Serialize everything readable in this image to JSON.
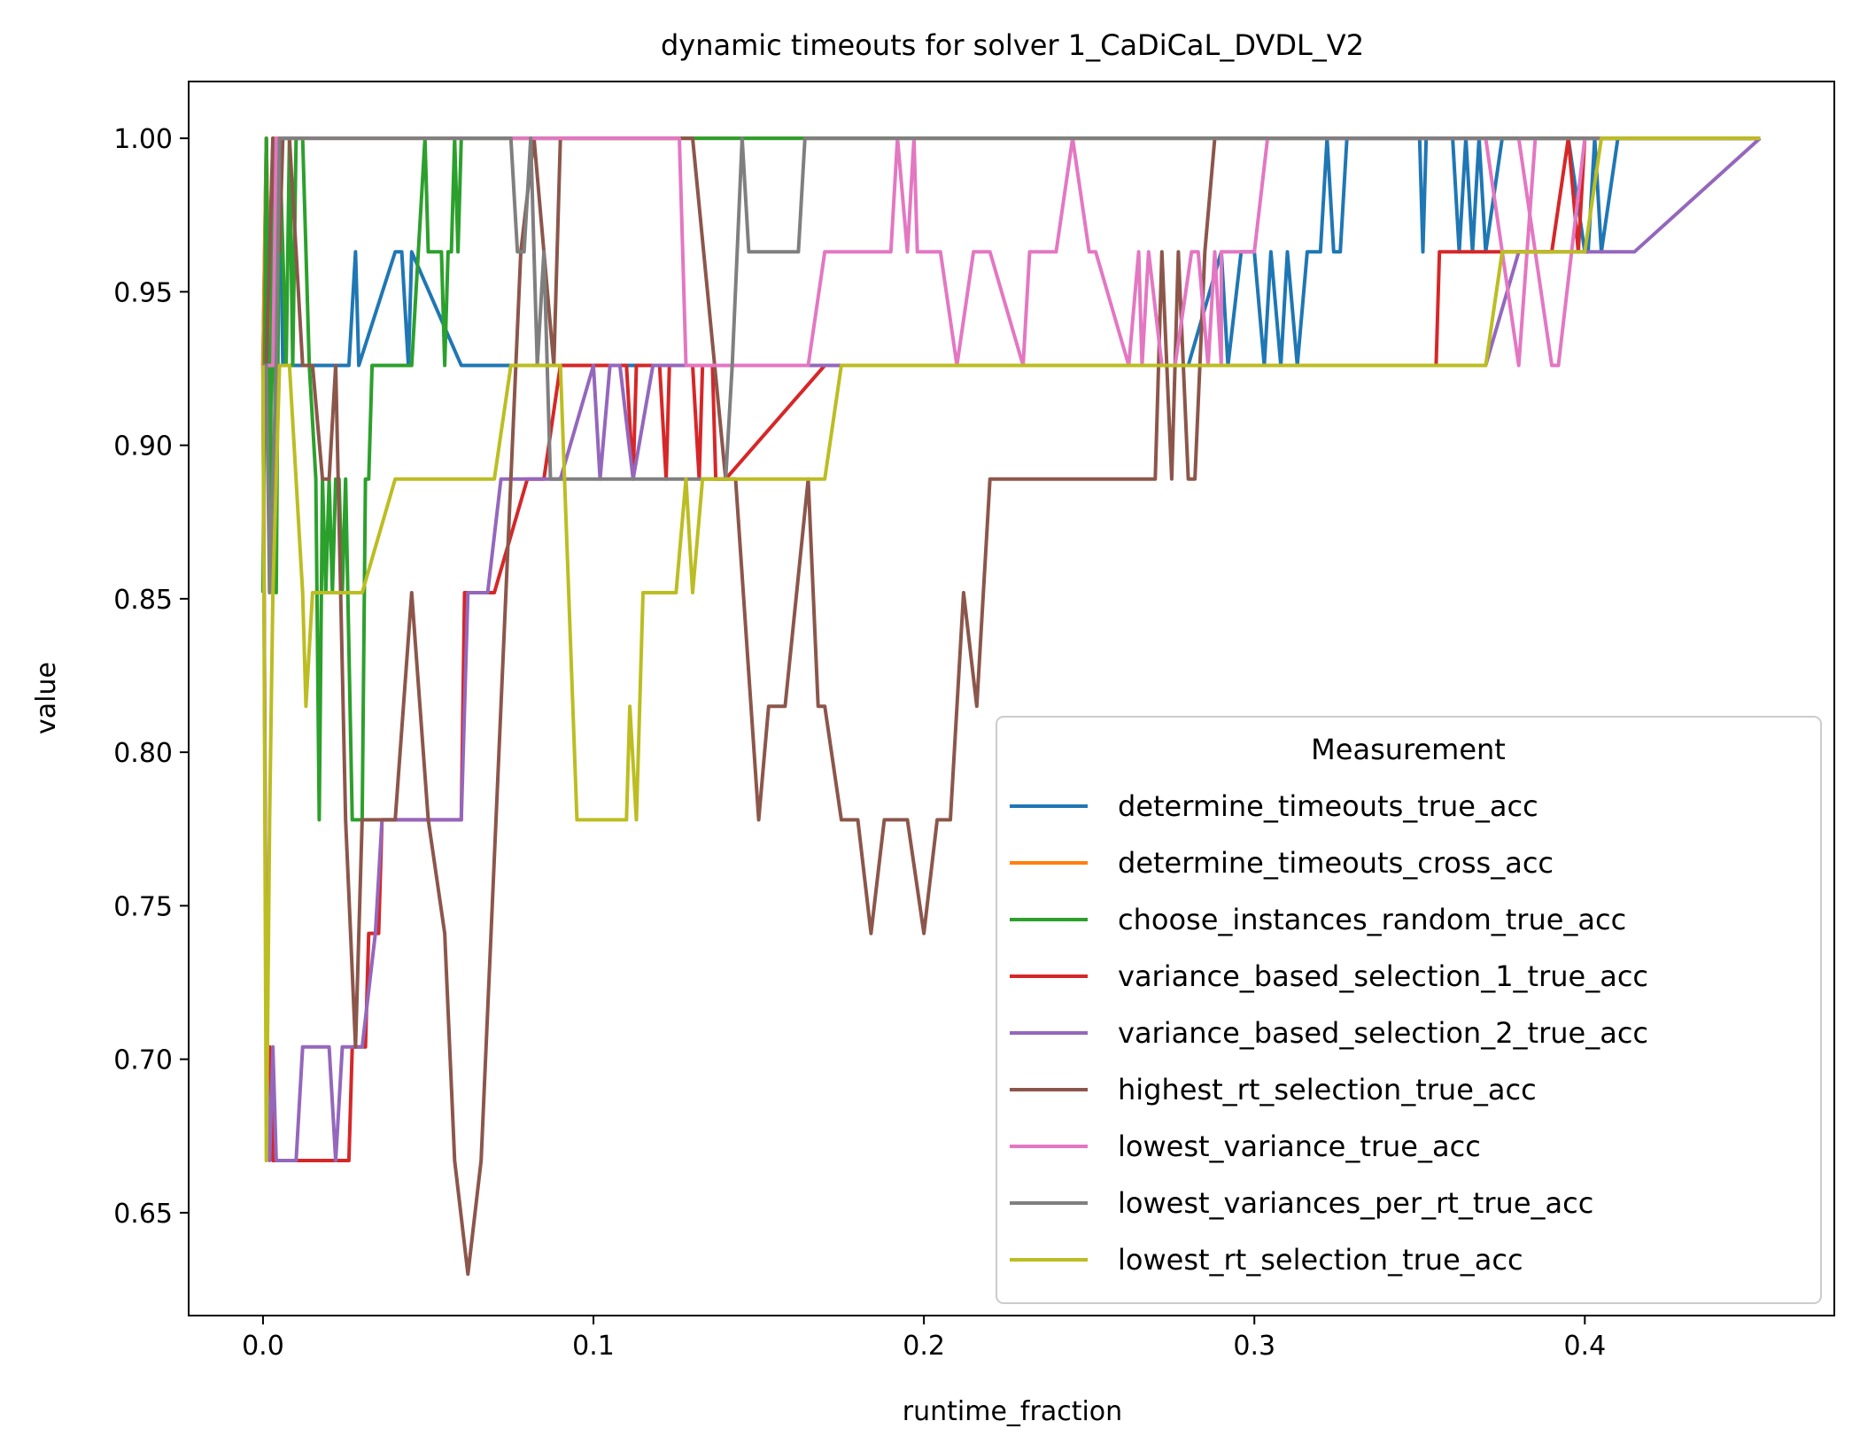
{
  "chart_data": {
    "type": "line",
    "title": "dynamic timeouts for solver 1_CaDiCaL_DVDL_V2",
    "xlabel": "runtime_fraction",
    "ylabel": "value",
    "xlim": [
      -0.0225,
      0.4755
    ],
    "ylim": [
      0.6165,
      1.0185
    ],
    "xticks": [
      "0.0",
      "0.1",
      "0.2",
      "0.3",
      "0.4"
    ],
    "yticks": [
      "0.65",
      "0.70",
      "0.75",
      "0.80",
      "0.85",
      "0.90",
      "0.95",
      "1.00"
    ],
    "grid": false,
    "legend": {
      "title": "Measurement",
      "placement": "lower right"
    },
    "series": [
      {
        "name": "determine_timeouts_true_acc",
        "color": "#1f77b4",
        "x": [
          0.0,
          0.001,
          0.002,
          0.003,
          0.004,
          0.005,
          0.006,
          0.008,
          0.012,
          0.015,
          0.017,
          0.02,
          0.024,
          0.026,
          0.028,
          0.029,
          0.04,
          0.042,
          0.044,
          0.045,
          0.06,
          0.08,
          0.1,
          0.2,
          0.28,
          0.29,
          0.292,
          0.296,
          0.3,
          0.303,
          0.305,
          0.308,
          0.31,
          0.313,
          0.316,
          0.32,
          0.322,
          0.324,
          0.326,
          0.328,
          0.35,
          0.351,
          0.352,
          0.356,
          0.36,
          0.362,
          0.364,
          0.366,
          0.368,
          0.37,
          0.375,
          0.38,
          0.395,
          0.4,
          0.401,
          0.403,
          0.405,
          0.41,
          0.453
        ],
        "y": [
          0.926,
          1.0,
          0.926,
          1.0,
          0.963,
          1.0,
          0.926,
          0.926,
          0.926,
          0.926,
          0.926,
          0.926,
          0.926,
          0.926,
          0.963,
          0.926,
          0.963,
          0.963,
          0.926,
          0.963,
          0.926,
          0.926,
          0.926,
          0.926,
          0.926,
          0.963,
          0.926,
          0.963,
          0.963,
          0.926,
          0.963,
          0.926,
          0.963,
          0.926,
          0.963,
          0.963,
          1.0,
          0.963,
          0.963,
          1.0,
          1.0,
          0.963,
          1.0,
          1.0,
          1.0,
          0.963,
          1.0,
          0.963,
          1.0,
          0.963,
          1.0,
          1.0,
          1.0,
          0.963,
          0.963,
          1.0,
          0.963,
          1.0,
          1.0
        ]
      },
      {
        "name": "determine_timeouts_cross_acc",
        "color": "#ff7f0e",
        "x": [
          0.0,
          0.001,
          0.002,
          0.003,
          0.004,
          0.453
        ],
        "y": [
          0.926,
          1.0,
          0.926,
          1.0,
          1.0,
          1.0
        ]
      },
      {
        "name": "choose_instances_random_true_acc",
        "color": "#2ca02c",
        "x": [
          0.0,
          0.001,
          0.002,
          0.003,
          0.004,
          0.005,
          0.007,
          0.008,
          0.009,
          0.01,
          0.012,
          0.014,
          0.016,
          0.017,
          0.018,
          0.019,
          0.02,
          0.021,
          0.022,
          0.023,
          0.024,
          0.025,
          0.027,
          0.028,
          0.03,
          0.031,
          0.032,
          0.033,
          0.035,
          0.045,
          0.047,
          0.049,
          0.05,
          0.052,
          0.054,
          0.055,
          0.056,
          0.057,
          0.058,
          0.059,
          0.06,
          0.061,
          0.065,
          0.075,
          0.09,
          0.1,
          0.125,
          0.145,
          0.165,
          0.453
        ],
        "y": [
          0.852,
          1.0,
          0.852,
          1.0,
          0.852,
          1.0,
          0.926,
          1.0,
          0.926,
          1.0,
          1.0,
          0.926,
          0.889,
          0.778,
          0.889,
          0.852,
          0.889,
          0.852,
          0.889,
          0.889,
          0.852,
          0.889,
          0.778,
          0.778,
          0.778,
          0.889,
          0.889,
          0.926,
          0.926,
          0.926,
          0.963,
          1.0,
          0.963,
          0.963,
          0.963,
          0.926,
          0.963,
          0.963,
          1.0,
          0.963,
          1.0,
          1.0,
          1.0,
          1.0,
          1.0,
          1.0,
          1.0,
          1.0,
          1.0,
          1.0
        ]
      },
      {
        "name": "variance_based_selection_1_true_acc",
        "color": "#d62728",
        "x": [
          0.0,
          0.001,
          0.002,
          0.003,
          0.004,
          0.005,
          0.01,
          0.015,
          0.016,
          0.018,
          0.02,
          0.022,
          0.023,
          0.025,
          0.026,
          0.027,
          0.028,
          0.03,
          0.031,
          0.032,
          0.033,
          0.035,
          0.036,
          0.038,
          0.04,
          0.06,
          0.061,
          0.062,
          0.065,
          0.067,
          0.07,
          0.08,
          0.085,
          0.09,
          0.1,
          0.11,
          0.112,
          0.113,
          0.115,
          0.12,
          0.122,
          0.123,
          0.125,
          0.13,
          0.132,
          0.133,
          0.135,
          0.136,
          0.137,
          0.14,
          0.17,
          0.2,
          0.3,
          0.35,
          0.355,
          0.356,
          0.358,
          0.37,
          0.39,
          0.395,
          0.398,
          0.4,
          0.402,
          0.453
        ],
        "y": [
          0.926,
          0.704,
          0.704,
          0.667,
          0.667,
          0.667,
          0.667,
          0.667,
          0.667,
          0.667,
          0.667,
          0.667,
          0.667,
          0.667,
          0.667,
          0.704,
          0.704,
          0.704,
          0.704,
          0.741,
          0.741,
          0.741,
          0.778,
          0.778,
          0.778,
          0.778,
          0.852,
          0.852,
          0.852,
          0.852,
          0.852,
          0.889,
          0.889,
          0.926,
          0.926,
          0.926,
          0.889,
          0.926,
          0.926,
          0.926,
          0.889,
          0.926,
          0.926,
          0.926,
          0.889,
          0.926,
          0.926,
          0.926,
          0.889,
          0.889,
          0.926,
          0.926,
          0.926,
          0.926,
          0.926,
          0.963,
          0.963,
          0.963,
          0.963,
          1.0,
          0.963,
          1.0,
          1.0,
          1.0
        ]
      },
      {
        "name": "variance_based_selection_2_true_acc",
        "color": "#9467bd",
        "x": [
          0.0,
          0.001,
          0.002,
          0.003,
          0.004,
          0.005,
          0.01,
          0.012,
          0.014,
          0.02,
          0.022,
          0.024,
          0.026,
          0.03,
          0.034,
          0.036,
          0.04,
          0.06,
          0.062,
          0.064,
          0.068,
          0.072,
          0.078,
          0.085,
          0.09,
          0.1,
          0.102,
          0.105,
          0.108,
          0.112,
          0.118,
          0.125,
          0.17,
          0.3,
          0.37,
          0.38,
          0.395,
          0.41,
          0.415,
          0.453
        ],
        "y": [
          0.926,
          0.704,
          0.667,
          0.704,
          0.667,
          0.667,
          0.667,
          0.704,
          0.704,
          0.704,
          0.667,
          0.704,
          0.704,
          0.704,
          0.741,
          0.778,
          0.778,
          0.778,
          0.852,
          0.852,
          0.852,
          0.889,
          0.889,
          0.889,
          0.889,
          0.926,
          0.889,
          0.926,
          0.926,
          0.889,
          0.926,
          0.926,
          0.926,
          0.926,
          0.926,
          0.963,
          0.963,
          0.963,
          0.963,
          1.0
        ]
      },
      {
        "name": "highest_rt_selection_true_acc",
        "color": "#8c564b",
        "x": [
          0.0,
          0.001,
          0.002,
          0.003,
          0.004,
          0.005,
          0.006,
          0.008,
          0.01,
          0.012,
          0.015,
          0.018,
          0.02,
          0.022,
          0.025,
          0.028,
          0.03,
          0.035,
          0.04,
          0.045,
          0.05,
          0.055,
          0.058,
          0.062,
          0.066,
          0.072,
          0.078,
          0.082,
          0.085,
          0.088,
          0.09,
          0.095,
          0.1,
          0.11,
          0.12,
          0.13,
          0.14,
          0.143,
          0.15,
          0.153,
          0.158,
          0.165,
          0.168,
          0.17,
          0.175,
          0.18,
          0.184,
          0.188,
          0.195,
          0.2,
          0.204,
          0.208,
          0.212,
          0.216,
          0.22,
          0.225,
          0.23,
          0.27,
          0.272,
          0.275,
          0.277,
          0.28,
          0.282,
          0.285,
          0.288,
          0.29,
          0.293,
          0.295,
          0.297,
          0.3,
          0.31,
          0.32,
          0.34,
          0.453
        ],
        "y": [
          0.926,
          0.926,
          0.963,
          1.0,
          0.963,
          0.963,
          1.0,
          1.0,
          0.963,
          0.926,
          0.926,
          0.889,
          0.889,
          0.926,
          0.778,
          0.704,
          0.778,
          0.778,
          0.778,
          0.852,
          0.778,
          0.741,
          0.667,
          0.63,
          0.667,
          0.815,
          0.963,
          1.0,
          0.963,
          0.926,
          1.0,
          1.0,
          1.0,
          1.0,
          1.0,
          1.0,
          0.889,
          0.889,
          0.778,
          0.815,
          0.815,
          0.889,
          0.815,
          0.815,
          0.778,
          0.778,
          0.741,
          0.778,
          0.778,
          0.741,
          0.778,
          0.778,
          0.852,
          0.815,
          0.889,
          0.889,
          0.889,
          0.889,
          0.963,
          0.889,
          0.963,
          0.889,
          0.889,
          0.963,
          1.0,
          1.0,
          1.0,
          1.0,
          1.0,
          1.0,
          1.0,
          1.0,
          1.0,
          1.0
        ]
      },
      {
        "name": "lowest_variance_true_acc",
        "color": "#e377c2",
        "x": [
          0.0,
          0.001,
          0.002,
          0.003,
          0.004,
          0.005,
          0.008,
          0.08,
          0.09,
          0.1,
          0.11,
          0.126,
          0.127,
          0.128,
          0.13,
          0.16,
          0.165,
          0.17,
          0.18,
          0.19,
          0.192,
          0.195,
          0.197,
          0.198,
          0.2,
          0.205,
          0.21,
          0.215,
          0.22,
          0.23,
          0.232,
          0.236,
          0.24,
          0.245,
          0.25,
          0.252,
          0.262,
          0.265,
          0.266,
          0.268,
          0.272,
          0.276,
          0.281,
          0.283,
          0.286,
          0.288,
          0.29,
          0.29,
          0.3,
          0.304,
          0.308,
          0.31,
          0.315,
          0.32,
          0.325,
          0.33,
          0.333,
          0.335,
          0.34,
          0.345,
          0.35,
          0.37,
          0.38,
          0.385,
          0.38,
          0.39,
          0.392,
          0.4,
          0.453
        ],
        "y": [
          0.926,
          0.926,
          0.926,
          0.926,
          1.0,
          1.0,
          1.0,
          1.0,
          1.0,
          1.0,
          1.0,
          1.0,
          0.963,
          0.926,
          0.926,
          0.926,
          0.926,
          0.963,
          0.963,
          0.963,
          1.0,
          0.963,
          1.0,
          0.963,
          0.963,
          0.963,
          0.926,
          0.963,
          0.963,
          0.926,
          0.963,
          0.963,
          0.963,
          1.0,
          0.963,
          0.963,
          0.926,
          0.963,
          0.926,
          0.963,
          0.926,
          0.926,
          0.963,
          0.963,
          0.926,
          0.963,
          0.926,
          0.963,
          0.963,
          1.0,
          1.0,
          1.0,
          1.0,
          1.0,
          1.0,
          1.0,
          1.0,
          1.0,
          1.0,
          1.0,
          1.0,
          1.0,
          0.926,
          1.0,
          1.0,
          0.926,
          0.926,
          1.0,
          1.0
        ]
      },
      {
        "name": "lowest_variances_per_rt_true_acc",
        "color": "#7f7f7f",
        "x": [
          0.0,
          0.001,
          0.002,
          0.003,
          0.004,
          0.005,
          0.008,
          0.05,
          0.075,
          0.077,
          0.079,
          0.081,
          0.083,
          0.085,
          0.087,
          0.09,
          0.1,
          0.14,
          0.142,
          0.145,
          0.147,
          0.15,
          0.155,
          0.16,
          0.162,
          0.164,
          0.2,
          0.453
        ],
        "y": [
          0.926,
          0.926,
          0.852,
          0.889,
          0.926,
          1.0,
          1.0,
          1.0,
          1.0,
          0.963,
          0.963,
          1.0,
          0.926,
          0.963,
          0.889,
          0.889,
          0.889,
          0.889,
          0.926,
          1.0,
          0.963,
          0.963,
          0.963,
          0.963,
          0.963,
          1.0,
          1.0,
          1.0
        ]
      },
      {
        "name": "lowest_rt_selection_true_acc",
        "color": "#bcbd22",
        "x": [
          0.0,
          0.001,
          0.002,
          0.003,
          0.004,
          0.005,
          0.008,
          0.012,
          0.013,
          0.015,
          0.02,
          0.03,
          0.04,
          0.045,
          0.05,
          0.06,
          0.07,
          0.075,
          0.08,
          0.09,
          0.095,
          0.1,
          0.11,
          0.111,
          0.113,
          0.115,
          0.125,
          0.128,
          0.13,
          0.133,
          0.135,
          0.14,
          0.17,
          0.175,
          0.2,
          0.3,
          0.37,
          0.375,
          0.38,
          0.4,
          0.405,
          0.453
        ],
        "y": [
          0.926,
          0.667,
          0.778,
          0.852,
          0.889,
          0.926,
          0.926,
          0.852,
          0.815,
          0.852,
          0.852,
          0.852,
          0.889,
          0.889,
          0.889,
          0.889,
          0.889,
          0.926,
          0.926,
          0.926,
          0.778,
          0.778,
          0.778,
          0.815,
          0.778,
          0.852,
          0.852,
          0.889,
          0.852,
          0.889,
          0.889,
          0.889,
          0.889,
          0.926,
          0.926,
          0.926,
          0.926,
          0.963,
          0.963,
          0.963,
          1.0,
          1.0
        ]
      }
    ]
  }
}
